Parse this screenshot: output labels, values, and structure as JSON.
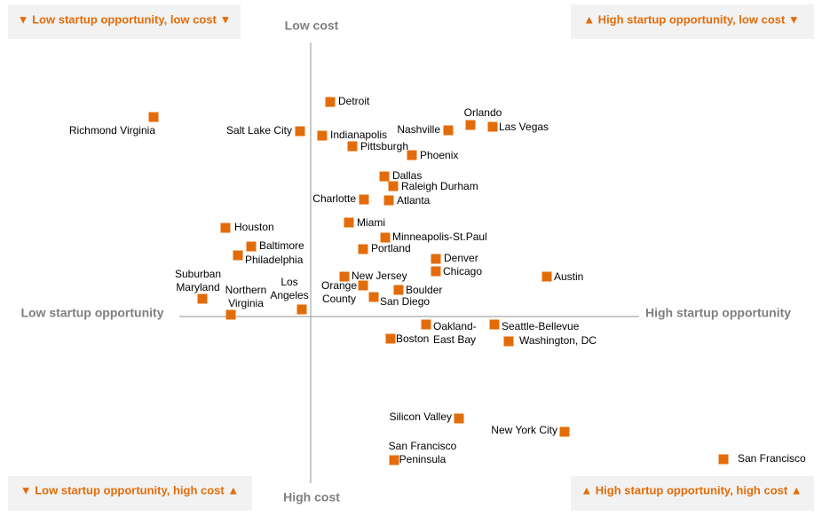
{
  "chart_data": {
    "type": "scatter",
    "quadrants": [
      "▼ Low startup opportunity, low cost ▼",
      "▲ High startup opportunity, low cost ▼",
      "▼ Low startup opportunity, high cost ▲",
      "▲ High startup opportunity, high cost ▲"
    ],
    "y_axis_top": "Low cost",
    "y_axis_bottom": "High cost",
    "x_axis_left": "Low startup opportunity",
    "x_axis_right": "High startup opportunity",
    "xlim": [
      -350,
      576
    ],
    "ylim": [
      -225,
      357
    ],
    "color": "#e36c0a",
    "labels": [
      "Detroit",
      "Richmond Virginia",
      "Salt Lake City",
      "Indianapolis",
      "Nashville",
      "Orlando",
      "Las Vegas",
      "Pittsburgh",
      "Phoenix",
      "Dallas",
      "Raleigh Durham",
      "Charlotte",
      "Atlanta",
      "Houston",
      "Miami",
      "Minneapolis-St.Paul",
      "Baltimore",
      "Portland",
      "Philadelphia",
      "Denver",
      "Chicago",
      "Austin",
      "New Jersey",
      "Suburban\nMaryland",
      "Orange\nCounty",
      "Boulder",
      "San Diego",
      "Northern\nVirginia",
      "Los\nAngeles",
      "Oakland-\nEast Bay",
      "Seattle-Bellevue",
      "Boston",
      "Washington, DC",
      "Silicon Valley",
      "New York City",
      "San Francisco\nPeninsula",
      "San Francisco"
    ],
    "x": [
      22,
      -177,
      -12,
      13,
      155,
      180,
      205,
      47,
      114,
      83,
      93,
      60,
      88,
      -96,
      43,
      84,
      -67,
      59,
      -82,
      141,
      141,
      266,
      38,
      -122,
      59,
      99,
      71,
      -90,
      -10,
      130,
      207,
      90,
      223,
      167,
      286,
      94,
      465
    ],
    "y": [
      242,
      225,
      209,
      204,
      210,
      216,
      214,
      192,
      182,
      158,
      147,
      132,
      131,
      100,
      106,
      89,
      79,
      76,
      69,
      65,
      51,
      45,
      45,
      20,
      35,
      30,
      22,
      2,
      8,
      -9,
      -9,
      -25,
      -28,
      -115,
      -130,
      -162,
      -161
    ]
  }
}
